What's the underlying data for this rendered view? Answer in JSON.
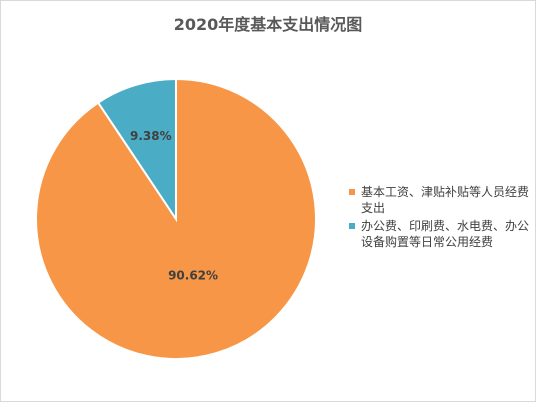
{
  "chart_data": {
    "type": "pie",
    "title": "2020年度基本支出情况图",
    "categories": [
      "基本工资、津贴补贴等人员经费支出",
      "办公费、印刷费、水电费、办公设备购置等日常公用经费"
    ],
    "values": [
      90.62,
      9.38
    ],
    "labels": [
      "90.62%",
      "9.38%"
    ],
    "colors": [
      "#F79646",
      "#4BACC6"
    ],
    "start_angle_deg": 0,
    "direction": "clockwise",
    "legend_position": "right"
  }
}
